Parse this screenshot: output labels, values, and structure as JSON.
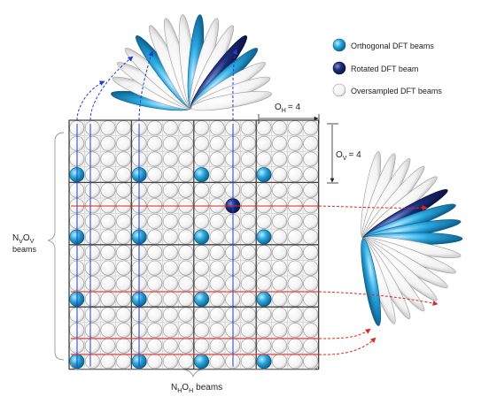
{
  "legend": {
    "orthogonal": "Orthogonal DFT beams",
    "rotated": "Rotated DFT beam",
    "oversampled": "Oversampled DFT beams"
  },
  "labels": {
    "oh_main": "O",
    "oh_sub": "H",
    "oh_val": "= 4",
    "ov_main": "O",
    "ov_sub": "V",
    "ov_val": "= 4",
    "nvov_n": "N",
    "nvov_nsub": "V",
    "nvov_o": "O",
    "nvov_osub": "V",
    "nvov_beams": "beams",
    "nhoh_n": "N",
    "nhoh_nsub": "H",
    "nhoh_o": "O",
    "nhoh_osub": "H",
    "nhoh_beams": "beams"
  },
  "grid": {
    "blocks_h": 4,
    "blocks_v": 4,
    "oversampling_h": 4,
    "oversampling_v": 4
  },
  "colors": {
    "orthogonal": "#29a9df",
    "rotated": "#1c2e7a",
    "oversampled": "#ffffff",
    "red_line": "#e0261f",
    "blue_line": "#1f3fcf",
    "grid_line": "#555555"
  }
}
